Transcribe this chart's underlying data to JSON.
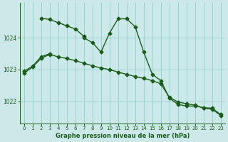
{
  "title": "Graphe pression niveau de la mer (hPa)",
  "bg_color": "#cce8e8",
  "grid_color": "#99cccc",
  "line_color": "#1a5c1a",
  "marker": "D",
  "markersize": 2.5,
  "linewidth": 1.0,
  "x": [
    0,
    1,
    2,
    3,
    4,
    5,
    6,
    7,
    8,
    9,
    10,
    11,
    12,
    13,
    14,
    15,
    16,
    17,
    18,
    19,
    20,
    21,
    22,
    23
  ],
  "series1": [
    null,
    null,
    1024.62,
    1024.58,
    1024.48,
    1024.38,
    1024.28,
    1024.05,
    null,
    null,
    null,
    null,
    null,
    null,
    null,
    null,
    null,
    null,
    null,
    null,
    null,
    null,
    null,
    null
  ],
  "series2": [
    1022.95,
    1023.1,
    1023.4,
    1023.5,
    null,
    null,
    null,
    1024.0,
    1023.85,
    1023.55,
    1024.15,
    1024.6,
    1024.6,
    1024.35,
    1023.55,
    1022.85,
    1022.65,
    1022.1,
    1021.9,
    1021.85,
    1021.85,
    1021.8,
    1021.78,
    1021.58
  ],
  "series3": [
    1022.88,
    1023.08,
    1023.35,
    1023.48,
    1023.4,
    1023.35,
    1023.28,
    1023.2,
    1023.12,
    1023.05,
    1023.0,
    1022.92,
    1022.85,
    1022.78,
    1022.72,
    1022.65,
    1022.55,
    1022.12,
    1021.98,
    1021.92,
    1021.88,
    1021.78,
    1021.75,
    1021.55
  ],
  "ylim": [
    1021.3,
    1025.1
  ],
  "yticks": [
    1022,
    1023,
    1024
  ],
  "xticks": [
    0,
    1,
    2,
    3,
    4,
    5,
    6,
    7,
    8,
    9,
    10,
    11,
    12,
    13,
    14,
    15,
    16,
    17,
    18,
    19,
    20,
    21,
    22,
    23
  ],
  "tick_color": "#1a5c1a",
  "axis_color": "#1a5c1a",
  "title_color": "#1a5c1a"
}
